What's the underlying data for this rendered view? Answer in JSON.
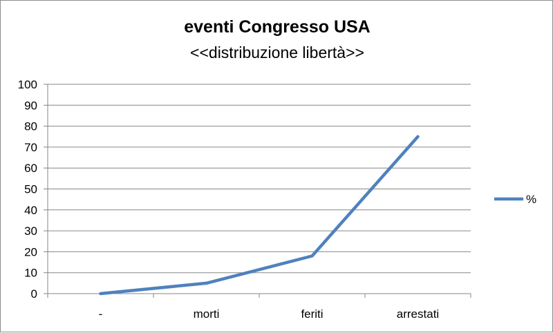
{
  "chart_data": {
    "type": "line",
    "title": "eventi Congresso USA",
    "subtitle": "<<distribuzione libertà>>",
    "categories": [
      "-",
      "morti",
      "feriti",
      "arrestati"
    ],
    "series": [
      {
        "name": "%",
        "values": [
          0,
          5,
          18,
          75
        ],
        "color": "#4f81bd"
      }
    ],
    "ylim": [
      0,
      100
    ],
    "yticks": [
      0,
      10,
      20,
      30,
      40,
      50,
      60,
      70,
      80,
      90,
      100
    ],
    "grid": true,
    "legend_position": "right"
  }
}
